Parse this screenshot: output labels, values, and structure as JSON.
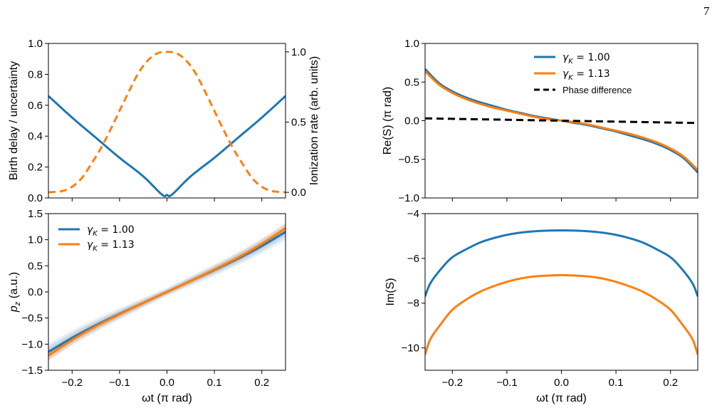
{
  "page": {
    "number": "7"
  },
  "colors": {
    "blue": "#1f77b4",
    "orange": "#ff7f0e",
    "black": "#000000"
  },
  "chart_data": [
    {
      "id": "birth_delay",
      "type": "line",
      "xlabel": "",
      "ylabel": "Birth delay / uncertainty",
      "y2label": "Ionization rate (arb. units)",
      "xlim": [
        -0.25,
        0.25
      ],
      "ylim": [
        0,
        1.0
      ],
      "y2lim": [
        -0.04,
        1.06
      ],
      "xticks": [
        -0.2,
        -0.1,
        0.0,
        0.1,
        0.2
      ],
      "xticklabels_shown": false,
      "yticks": [
        "0.0",
        "0.2",
        "0.4",
        "0.6",
        "0.8",
        "1.0"
      ],
      "y2ticks": [
        "0.0",
        "0.5",
        "1.0"
      ],
      "series": [
        {
          "color": "blue",
          "style": "solid",
          "axis": "left",
          "x": [
            -0.25,
            -0.2,
            -0.15,
            -0.1,
            -0.05,
            -0.01,
            0.0,
            0.01,
            0.05,
            0.1,
            0.15,
            0.2,
            0.25
          ],
          "y": [
            0.66,
            0.52,
            0.39,
            0.26,
            0.14,
            0.02,
            0.02,
            0.02,
            0.14,
            0.26,
            0.39,
            0.52,
            0.66
          ]
        },
        {
          "color": "orange",
          "style": "dashed",
          "axis": "right",
          "x": [
            -0.25,
            -0.22,
            -0.2,
            -0.18,
            -0.16,
            -0.14,
            -0.12,
            -0.1,
            -0.08,
            -0.06,
            -0.04,
            -0.02,
            0.0,
            0.02,
            0.04,
            0.06,
            0.08,
            0.1,
            0.12,
            0.14,
            0.16,
            0.18,
            0.2,
            0.22,
            0.25
          ],
          "y": [
            0.0,
            0.01,
            0.04,
            0.1,
            0.2,
            0.31,
            0.44,
            0.58,
            0.72,
            0.85,
            0.94,
            0.99,
            1.0,
            0.99,
            0.94,
            0.85,
            0.72,
            0.58,
            0.44,
            0.31,
            0.2,
            0.1,
            0.04,
            0.01,
            0.0
          ]
        }
      ]
    },
    {
      "id": "pz",
      "type": "line",
      "xlabel": "ωt (π rad)",
      "ylabel": "p_z (a.u.)",
      "xlim": [
        -0.25,
        0.25
      ],
      "ylim": [
        -1.5,
        1.5
      ],
      "xticks": [
        -0.2,
        -0.1,
        0.0,
        0.1,
        0.2
      ],
      "xticklabels": [
        "−0.2",
        "−0.1",
        "0.0",
        "0.1",
        "0.2"
      ],
      "yticks": [
        "−1.5",
        "−1.0",
        "−0.5",
        "0.0",
        "0.5",
        "1.0",
        "1.5"
      ],
      "legend": {
        "position": "upper-left",
        "entries": [
          {
            "greek": "γ",
            "sub": "K",
            "rest": " = 1.00"
          },
          {
            "greek": "γ",
            "sub": "K",
            "rest": " = 1.13"
          }
        ]
      },
      "series": [
        {
          "name": "γK = 1.00",
          "color": "blue",
          "x": [
            -0.25,
            -0.2,
            -0.15,
            -0.1,
            -0.05,
            0.0,
            0.05,
            0.1,
            0.15,
            0.2,
            0.25
          ],
          "y": [
            -1.15,
            -0.88,
            -0.64,
            -0.42,
            -0.21,
            0.0,
            0.21,
            0.42,
            0.64,
            0.88,
            1.15
          ],
          "band": 0.13
        },
        {
          "name": "γK = 1.13",
          "color": "orange",
          "x": [
            -0.25,
            -0.2,
            -0.15,
            -0.1,
            -0.05,
            0.0,
            0.05,
            0.1,
            0.15,
            0.2,
            0.25
          ],
          "y": [
            -1.22,
            -0.92,
            -0.66,
            -0.43,
            -0.21,
            0.0,
            0.21,
            0.43,
            0.66,
            0.92,
            1.22
          ],
          "band": 0.09
        }
      ]
    },
    {
      "id": "re_s",
      "type": "line",
      "xlabel": "",
      "ylabel": "Re(S) (π rad)",
      "xlim": [
        -0.25,
        0.25
      ],
      "ylim": [
        -1.0,
        1.0
      ],
      "xticks": [
        -0.2,
        -0.1,
        0.0,
        0.1,
        0.2
      ],
      "xticklabels_shown": false,
      "yticks": [
        "−1.0",
        "−0.5",
        "0.0",
        "0.5",
        "1.0"
      ],
      "legend": {
        "position": "upper-right",
        "entries": [
          {
            "greek": "γ",
            "sub": "K",
            "rest": " = 1.00"
          },
          {
            "greek": "γ",
            "sub": "K",
            "rest": " = 1.13"
          },
          {
            "plain": "Phase difference"
          }
        ]
      },
      "series": [
        {
          "name": "γK = 1.00",
          "color": "blue",
          "x": [
            -0.25,
            -0.225,
            -0.2,
            -0.175,
            -0.15,
            -0.125,
            -0.1,
            -0.075,
            -0.05,
            -0.025,
            0.0,
            0.025,
            0.05,
            0.075,
            0.1,
            0.125,
            0.15,
            0.175,
            0.2,
            0.225,
            0.25
          ],
          "y": [
            0.67,
            0.49,
            0.38,
            0.3,
            0.24,
            0.19,
            0.14,
            0.1,
            0.06,
            0.03,
            0.0,
            -0.03,
            -0.06,
            -0.1,
            -0.14,
            -0.19,
            -0.24,
            -0.3,
            -0.38,
            -0.49,
            -0.67
          ]
        },
        {
          "name": "γK = 1.13",
          "color": "orange",
          "x": [
            -0.25,
            -0.225,
            -0.2,
            -0.175,
            -0.15,
            -0.125,
            -0.1,
            -0.075,
            -0.05,
            -0.025,
            0.0,
            0.025,
            0.05,
            0.075,
            0.1,
            0.125,
            0.15,
            0.175,
            0.2,
            0.225,
            0.25
          ],
          "y": [
            0.64,
            0.47,
            0.36,
            0.28,
            0.22,
            0.17,
            0.13,
            0.09,
            0.05,
            0.02,
            0.0,
            -0.02,
            -0.05,
            -0.09,
            -0.13,
            -0.17,
            -0.22,
            -0.28,
            -0.36,
            -0.47,
            -0.64
          ]
        },
        {
          "name": "Phase difference",
          "color": "black",
          "style": "dashed",
          "x": [
            -0.25,
            0.25
          ],
          "y": [
            0.03,
            -0.03
          ]
        }
      ]
    },
    {
      "id": "im_s",
      "type": "line",
      "xlabel": "ωt (π rad)",
      "ylabel": "Im(S)",
      "xlim": [
        -0.25,
        0.25
      ],
      "ylim": [
        -11,
        -4
      ],
      "xticks": [
        -0.2,
        -0.1,
        0.0,
        0.1,
        0.2
      ],
      "xticklabels": [
        "−0.2",
        "−0.1",
        "0.0",
        "0.1",
        "0.2"
      ],
      "yticks": [
        "−10",
        "−8",
        "−6",
        "−4"
      ],
      "series": [
        {
          "color": "blue",
          "x": [
            -0.25,
            -0.24,
            -0.22,
            -0.2,
            -0.175,
            -0.15,
            -0.125,
            -0.1,
            -0.075,
            -0.05,
            -0.025,
            0.0,
            0.025,
            0.05,
            0.075,
            0.1,
            0.125,
            0.15,
            0.175,
            0.2,
            0.22,
            0.24,
            0.25
          ],
          "y": [
            -7.7,
            -7.1,
            -6.45,
            -5.95,
            -5.6,
            -5.3,
            -5.1,
            -4.95,
            -4.85,
            -4.79,
            -4.76,
            -4.75,
            -4.76,
            -4.79,
            -4.85,
            -4.95,
            -5.1,
            -5.3,
            -5.6,
            -5.95,
            -6.45,
            -7.1,
            -7.7
          ]
        },
        {
          "color": "orange",
          "x": [
            -0.25,
            -0.24,
            -0.22,
            -0.2,
            -0.175,
            -0.15,
            -0.125,
            -0.1,
            -0.075,
            -0.05,
            -0.025,
            0.0,
            0.025,
            0.05,
            0.075,
            0.1,
            0.125,
            0.15,
            0.175,
            0.2,
            0.22,
            0.24,
            0.25
          ],
          "y": [
            -10.3,
            -9.6,
            -8.9,
            -8.3,
            -7.85,
            -7.5,
            -7.25,
            -7.05,
            -6.9,
            -6.81,
            -6.77,
            -6.75,
            -6.77,
            -6.81,
            -6.9,
            -7.05,
            -7.25,
            -7.5,
            -7.85,
            -8.3,
            -8.9,
            -9.6,
            -10.3
          ]
        }
      ]
    }
  ]
}
